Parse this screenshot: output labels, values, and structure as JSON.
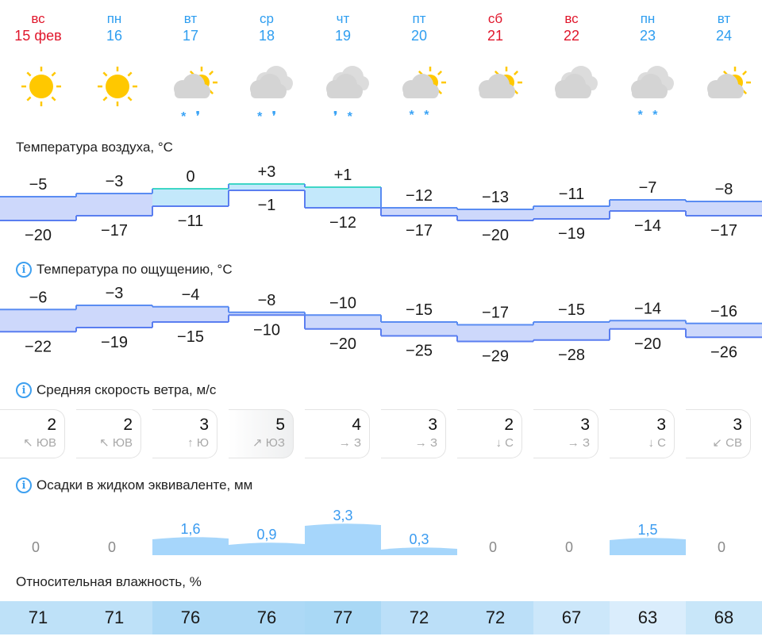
{
  "days": [
    {
      "dow": "вс",
      "date": "15 фев",
      "weekend": true,
      "icon": "sun-icon",
      "precip": ""
    },
    {
      "dow": "пн",
      "date": "16",
      "weekend": false,
      "icon": "sun-icon",
      "precip": ""
    },
    {
      "dow": "вт",
      "date": "17",
      "weekend": false,
      "icon": "partly-cloudy-snow-rain-icon",
      "precip": "* ,"
    },
    {
      "dow": "ср",
      "date": "18",
      "weekend": false,
      "icon": "cloudy-snow-rain-icon",
      "precip": "* ,"
    },
    {
      "dow": "чт",
      "date": "19",
      "weekend": false,
      "icon": "cloudy-snow-rain-heavy-icon",
      "precip": ", *"
    },
    {
      "dow": "пт",
      "date": "20",
      "weekend": false,
      "icon": "partly-cloudy-snow-icon",
      "precip": "* *"
    },
    {
      "dow": "сб",
      "date": "21",
      "weekend": true,
      "icon": "partly-cloudy-icon",
      "precip": ""
    },
    {
      "dow": "вс",
      "date": "22",
      "weekend": true,
      "icon": "cloudy-icon",
      "precip": ""
    },
    {
      "dow": "пн",
      "date": "23",
      "weekend": false,
      "icon": "cloudy-snow-icon",
      "precip": "* *"
    },
    {
      "dow": "вт",
      "date": "24",
      "weekend": false,
      "icon": "partly-cloudy-icon",
      "precip": ""
    }
  ],
  "colors": {
    "weekend": "#e0162b",
    "weekday": "#2f9ef0",
    "precip": "#a6d6fb",
    "precip_text": "#3a9bf0"
  },
  "air_temp": {
    "title": "Температура воздуха, °C",
    "max": [
      "−5",
      "−3",
      "0",
      "+3",
      "+1",
      "−12",
      "−13",
      "−11",
      "−7",
      "−8"
    ],
    "min": [
      "−20",
      "−17",
      "−11",
      "−1",
      "−12",
      "−17",
      "−20",
      "−19",
      "−14",
      "−17"
    ]
  },
  "feels_temp": {
    "title": "Температура по ощущению, °C",
    "max": [
      "−6",
      "−3",
      "−4",
      "−8",
      "−10",
      "−15",
      "−17",
      "−15",
      "−14",
      "−16"
    ],
    "min": [
      "−22",
      "−19",
      "−15",
      "−10",
      "−20",
      "−25",
      "−29",
      "−28",
      "−20",
      "−26"
    ]
  },
  "wind": {
    "title": "Средняя скорость ветра, м/с",
    "items": [
      {
        "speed": "2",
        "arrow": "↖",
        "dir": "ЮВ"
      },
      {
        "speed": "2",
        "arrow": "↖",
        "dir": "ЮВ"
      },
      {
        "speed": "3",
        "arrow": "↑",
        "dir": "Ю"
      },
      {
        "speed": "5",
        "arrow": "↗",
        "dir": "ЮЗ",
        "highlight": true
      },
      {
        "speed": "4",
        "arrow": "→",
        "dir": "З"
      },
      {
        "speed": "3",
        "arrow": "→",
        "dir": "З"
      },
      {
        "speed": "2",
        "arrow": "↓",
        "dir": "С"
      },
      {
        "speed": "3",
        "arrow": "→",
        "dir": "З"
      },
      {
        "speed": "3",
        "arrow": "↓",
        "dir": "С"
      },
      {
        "speed": "3",
        "arrow": "↙",
        "dir": "СВ"
      }
    ]
  },
  "precip": {
    "title": "Осадки в жидком эквиваленте, мм",
    "values": [
      "0",
      "0",
      "1,6",
      "0,9",
      "3,3",
      "0,3",
      "0",
      "0",
      "1,5",
      "0"
    ]
  },
  "humidity": {
    "title": "Относительная влажность, %",
    "values": [
      "71",
      "71",
      "76",
      "76",
      "77",
      "72",
      "72",
      "67",
      "63",
      "68"
    ]
  }
}
